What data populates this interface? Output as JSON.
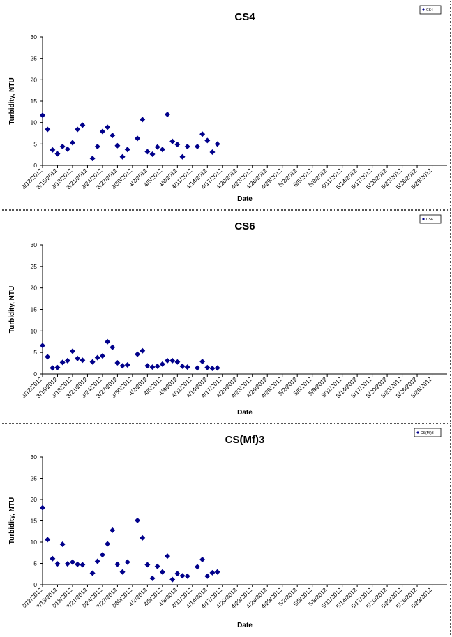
{
  "style": {
    "marker_color": "#00008B",
    "axis_color": "#000000",
    "background": "#ffffff"
  },
  "chart_data": [
    {
      "type": "scatter",
      "title": "CS4",
      "xlabel": "Date",
      "ylabel": "Turbidity, NTU",
      "ylim": [
        0,
        30
      ],
      "yticks": [
        0,
        5,
        10,
        15,
        20,
        25,
        30
      ],
      "xlim": [
        "3/12/2012",
        "6/1/2012"
      ],
      "xtick_labels": [
        "3/12/2012",
        "3/15/2012",
        "3/18/2012",
        "3/21/2012",
        "3/24/2012",
        "3/27/2012",
        "3/30/2012",
        "4/2/2012",
        "4/5/2012",
        "4/8/2012",
        "4/11/2012",
        "4/14/2012",
        "4/17/2012",
        "4/20/2012",
        "4/23/2012",
        "4/26/2012",
        "4/29/2012",
        "5/2/2012",
        "5/5/2012",
        "5/8/2012",
        "5/11/2012",
        "5/14/2012",
        "5/17/2012",
        "5/20/2012",
        "5/23/2012",
        "5/26/2012",
        "5/29/2012"
      ],
      "legend": "top-right",
      "series": [
        {
          "name": "CS4",
          "marker": "diamond",
          "points": [
            {
              "x": "3/12/2012",
              "y": 11.7
            },
            {
              "x": "3/13/2012",
              "y": 8.4
            },
            {
              "x": "3/14/2012",
              "y": 3.6
            },
            {
              "x": "3/15/2012",
              "y": 2.7
            },
            {
              "x": "3/16/2012",
              "y": 4.4
            },
            {
              "x": "3/17/2012",
              "y": 3.8
            },
            {
              "x": "3/18/2012",
              "y": 5.3
            },
            {
              "x": "3/19/2012",
              "y": 8.4
            },
            {
              "x": "3/20/2012",
              "y": 9.4
            },
            {
              "x": "3/22/2012",
              "y": 1.6
            },
            {
              "x": "3/23/2012",
              "y": 4.4
            },
            {
              "x": "3/24/2012",
              "y": 7.9
            },
            {
              "x": "3/25/2012",
              "y": 8.9
            },
            {
              "x": "3/26/2012",
              "y": 7.0
            },
            {
              "x": "3/27/2012",
              "y": 4.6
            },
            {
              "x": "3/28/2012",
              "y": 2.0
            },
            {
              "x": "3/29/2012",
              "y": 3.7
            },
            {
              "x": "3/31/2012",
              "y": 6.3
            },
            {
              "x": "4/1/2012",
              "y": 10.7
            },
            {
              "x": "4/2/2012",
              "y": 3.2
            },
            {
              "x": "4/3/2012",
              "y": 2.6
            },
            {
              "x": "4/4/2012",
              "y": 4.3
            },
            {
              "x": "4/5/2012",
              "y": 3.7
            },
            {
              "x": "4/6/2012",
              "y": 11.9
            },
            {
              "x": "4/7/2012",
              "y": 5.6
            },
            {
              "x": "4/8/2012",
              "y": 4.9
            },
            {
              "x": "4/9/2012",
              "y": 2.0
            },
            {
              "x": "4/10/2012",
              "y": 4.4
            },
            {
              "x": "4/12/2012",
              "y": 4.4
            },
            {
              "x": "4/13/2012",
              "y": 7.3
            },
            {
              "x": "4/14/2012",
              "y": 5.8
            },
            {
              "x": "4/15/2012",
              "y": 3.1
            },
            {
              "x": "4/16/2012",
              "y": 5.0
            }
          ]
        }
      ]
    },
    {
      "type": "scatter",
      "title": "CS6",
      "xlabel": "Date",
      "ylabel": "Turbidity, NTU",
      "ylim": [
        0,
        30
      ],
      "yticks": [
        0,
        5,
        10,
        15,
        20,
        25,
        30
      ],
      "xlim": [
        "3/12/2012",
        "6/1/2012"
      ],
      "xtick_labels": [
        "3/12/2012",
        "3/15/2012",
        "3/18/2012",
        "3/21/2012",
        "3/24/2012",
        "3/27/2012",
        "3/30/2012",
        "4/2/2012",
        "4/5/2012",
        "4/8/2012",
        "4/11/2012",
        "4/14/2012",
        "4/17/2012",
        "4/20/2012",
        "4/23/2012",
        "4/26/2012",
        "4/29/2012",
        "5/2/2012",
        "5/5/2012",
        "5/8/2012",
        "5/11/2012",
        "5/14/2012",
        "5/17/2012",
        "5/20/2012",
        "5/23/2012",
        "5/26/2012",
        "5/29/2012"
      ],
      "legend": "top-right",
      "series": [
        {
          "name": "CS6",
          "marker": "diamond",
          "points": [
            {
              "x": "3/12/2012",
              "y": 6.6
            },
            {
              "x": "3/13/2012",
              "y": 4.0
            },
            {
              "x": "3/14/2012",
              "y": 1.4
            },
            {
              "x": "3/15/2012",
              "y": 1.5
            },
            {
              "x": "3/16/2012",
              "y": 2.7
            },
            {
              "x": "3/17/2012",
              "y": 3.1
            },
            {
              "x": "3/18/2012",
              "y": 5.3
            },
            {
              "x": "3/19/2012",
              "y": 3.6
            },
            {
              "x": "3/20/2012",
              "y": 3.2
            },
            {
              "x": "3/22/2012",
              "y": 2.8
            },
            {
              "x": "3/23/2012",
              "y": 3.8
            },
            {
              "x": "3/24/2012",
              "y": 4.2
            },
            {
              "x": "3/25/2012",
              "y": 7.5
            },
            {
              "x": "3/26/2012",
              "y": 6.2
            },
            {
              "x": "3/27/2012",
              "y": 2.6
            },
            {
              "x": "3/28/2012",
              "y": 1.9
            },
            {
              "x": "3/29/2012",
              "y": 2.1
            },
            {
              "x": "3/31/2012",
              "y": 4.6
            },
            {
              "x": "4/1/2012",
              "y": 5.4
            },
            {
              "x": "4/2/2012",
              "y": 1.9
            },
            {
              "x": "4/3/2012",
              "y": 1.6
            },
            {
              "x": "4/4/2012",
              "y": 1.8
            },
            {
              "x": "4/5/2012",
              "y": 2.3
            },
            {
              "x": "4/6/2012",
              "y": 3.1
            },
            {
              "x": "4/7/2012",
              "y": 3.1
            },
            {
              "x": "4/8/2012",
              "y": 2.8
            },
            {
              "x": "4/9/2012",
              "y": 1.8
            },
            {
              "x": "4/10/2012",
              "y": 1.6
            },
            {
              "x": "4/12/2012",
              "y": 1.4
            },
            {
              "x": "4/13/2012",
              "y": 2.9
            },
            {
              "x": "4/14/2012",
              "y": 1.5
            },
            {
              "x": "4/15/2012",
              "y": 1.3
            },
            {
              "x": "4/16/2012",
              "y": 1.4
            }
          ]
        }
      ]
    },
    {
      "type": "scatter",
      "title": "CS(Mf)3",
      "xlabel": "Date",
      "ylabel": "Turbidity, NTU",
      "ylim": [
        0,
        30
      ],
      "yticks": [
        0,
        5,
        10,
        15,
        20,
        25,
        30
      ],
      "xlim": [
        "3/12/2012",
        "6/1/2012"
      ],
      "xtick_labels": [
        "3/12/2012",
        "3/15/2012",
        "3/18/2012",
        "3/21/2012",
        "3/24/2012",
        "3/27/2012",
        "3/30/2012",
        "4/2/2012",
        "4/5/2012",
        "4/8/2012",
        "4/11/2012",
        "4/14/2012",
        "4/17/2012",
        "4/20/2012",
        "4/23/2012",
        "4/26/2012",
        "4/29/2012",
        "5/2/2012",
        "5/5/2012",
        "5/8/2012",
        "5/11/2012",
        "5/14/2012",
        "5/17/2012",
        "5/20/2012",
        "5/23/2012",
        "5/26/2012",
        "5/29/2012"
      ],
      "legend": "top-right",
      "series": [
        {
          "name": "CS(Mf)3",
          "marker": "diamond",
          "points": [
            {
              "x": "3/12/2012",
              "y": 18.1
            },
            {
              "x": "3/13/2012",
              "y": 10.6
            },
            {
              "x": "3/14/2012",
              "y": 6.1
            },
            {
              "x": "3/15/2012",
              "y": 4.9
            },
            {
              "x": "3/16/2012",
              "y": 9.5
            },
            {
              "x": "3/17/2012",
              "y": 4.9
            },
            {
              "x": "3/18/2012",
              "y": 5.3
            },
            {
              "x": "3/19/2012",
              "y": 4.8
            },
            {
              "x": "3/20/2012",
              "y": 4.7
            },
            {
              "x": "3/22/2012",
              "y": 2.7
            },
            {
              "x": "3/23/2012",
              "y": 5.5
            },
            {
              "x": "3/24/2012",
              "y": 7.0
            },
            {
              "x": "3/25/2012",
              "y": 9.6
            },
            {
              "x": "3/26/2012",
              "y": 12.8
            },
            {
              "x": "3/27/2012",
              "y": 4.8
            },
            {
              "x": "3/28/2012",
              "y": 3.0
            },
            {
              "x": "3/29/2012",
              "y": 5.3
            },
            {
              "x": "3/31/2012",
              "y": 15.1
            },
            {
              "x": "4/1/2012",
              "y": 11.0
            },
            {
              "x": "4/2/2012",
              "y": 4.7
            },
            {
              "x": "4/3/2012",
              "y": 1.5
            },
            {
              "x": "4/4/2012",
              "y": 4.3
            },
            {
              "x": "4/5/2012",
              "y": 3.0
            },
            {
              "x": "4/6/2012",
              "y": 6.7
            },
            {
              "x": "4/7/2012",
              "y": 1.2
            },
            {
              "x": "4/8/2012",
              "y": 2.6
            },
            {
              "x": "4/9/2012",
              "y": 2.1
            },
            {
              "x": "4/10/2012",
              "y": 2.0
            },
            {
              "x": "4/12/2012",
              "y": 4.2
            },
            {
              "x": "4/13/2012",
              "y": 5.9
            },
            {
              "x": "4/14/2012",
              "y": 2.0
            },
            {
              "x": "4/15/2012",
              "y": 2.8
            },
            {
              "x": "4/16/2012",
              "y": 3.0
            }
          ]
        }
      ]
    }
  ]
}
